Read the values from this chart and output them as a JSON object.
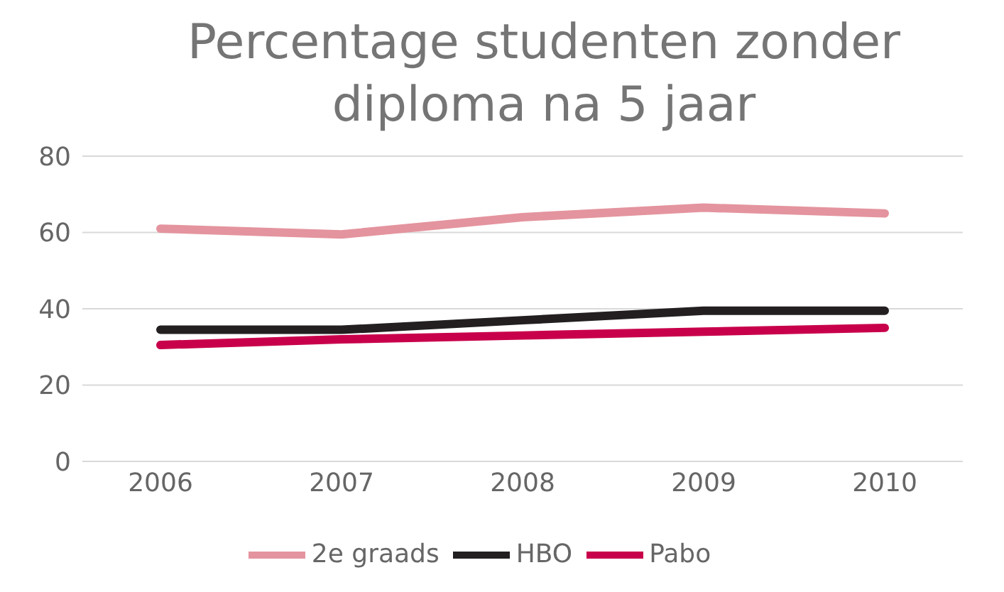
{
  "chart_data": {
    "type": "line",
    "title": "Percentage studenten zonder diploma na 5 jaar",
    "categories": [
      "2006",
      "2007",
      "2008",
      "2009",
      "2010"
    ],
    "series": [
      {
        "name": "HBO",
        "color": "#231f20",
        "values": [
          34.5,
          34.5,
          37,
          39.5,
          39.5
        ]
      },
      {
        "name": "Pabo",
        "color": "#c8004b",
        "values": [
          30.5,
          32,
          33,
          34,
          35
        ]
      },
      {
        "name": "2e graads",
        "color": "#e4949e",
        "values": [
          61,
          59.5,
          64,
          66.5,
          65
        ]
      }
    ],
    "ylim": [
      0,
      80
    ],
    "yticks": [
      0,
      20,
      40,
      60,
      80
    ],
    "grid": "y",
    "legend": "bottom",
    "marker": "none",
    "line_style": "solid"
  }
}
